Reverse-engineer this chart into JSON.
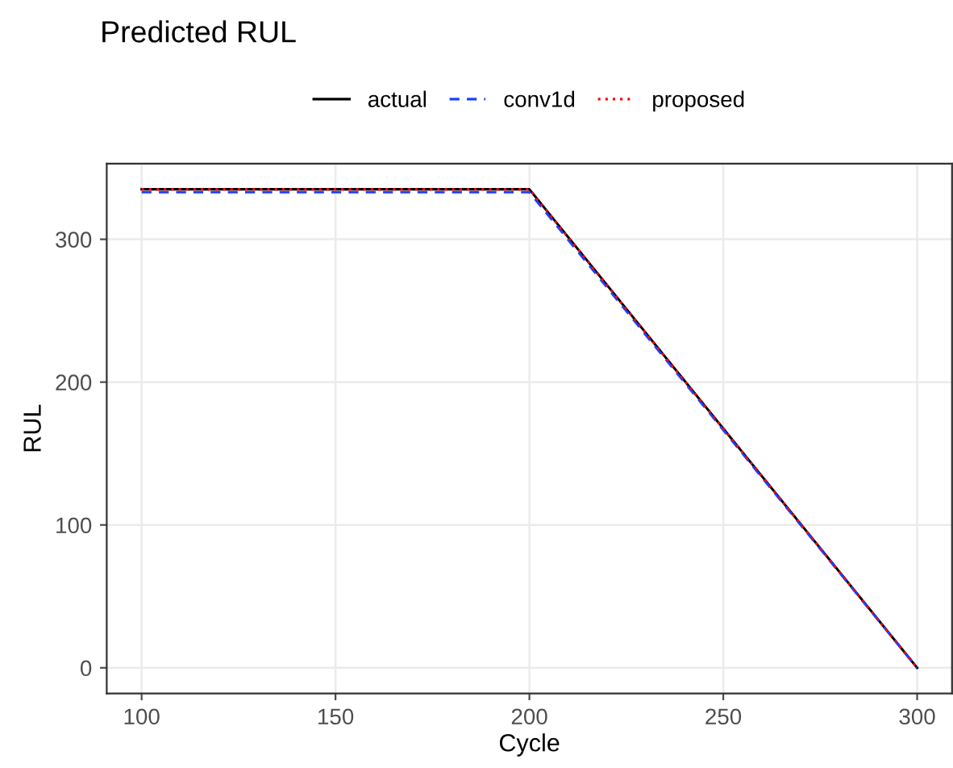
{
  "chart_data": {
    "type": "line",
    "title": "Predicted RUL",
    "xlabel": "Cycle",
    "ylabel": "RUL",
    "x": [
      100,
      200,
      300
    ],
    "series": [
      {
        "name": "actual",
        "color": "#000000",
        "line_style": "solid",
        "values": [
          335,
          335,
          0
        ]
      },
      {
        "name": "conv1d",
        "color": "#1f3fff",
        "line_style": "dashed",
        "values": [
          333,
          333,
          0
        ]
      },
      {
        "name": "proposed",
        "color": "#ff0000",
        "line_style": "dotted",
        "values": [
          335,
          335,
          0
        ]
      }
    ],
    "xlim": [
      91,
      309
    ],
    "ylim": [
      -18,
      353
    ],
    "xticks": [
      100,
      150,
      200,
      250,
      300
    ],
    "yticks": [
      0,
      100,
      200,
      300
    ],
    "grid": true,
    "legend": "top"
  }
}
